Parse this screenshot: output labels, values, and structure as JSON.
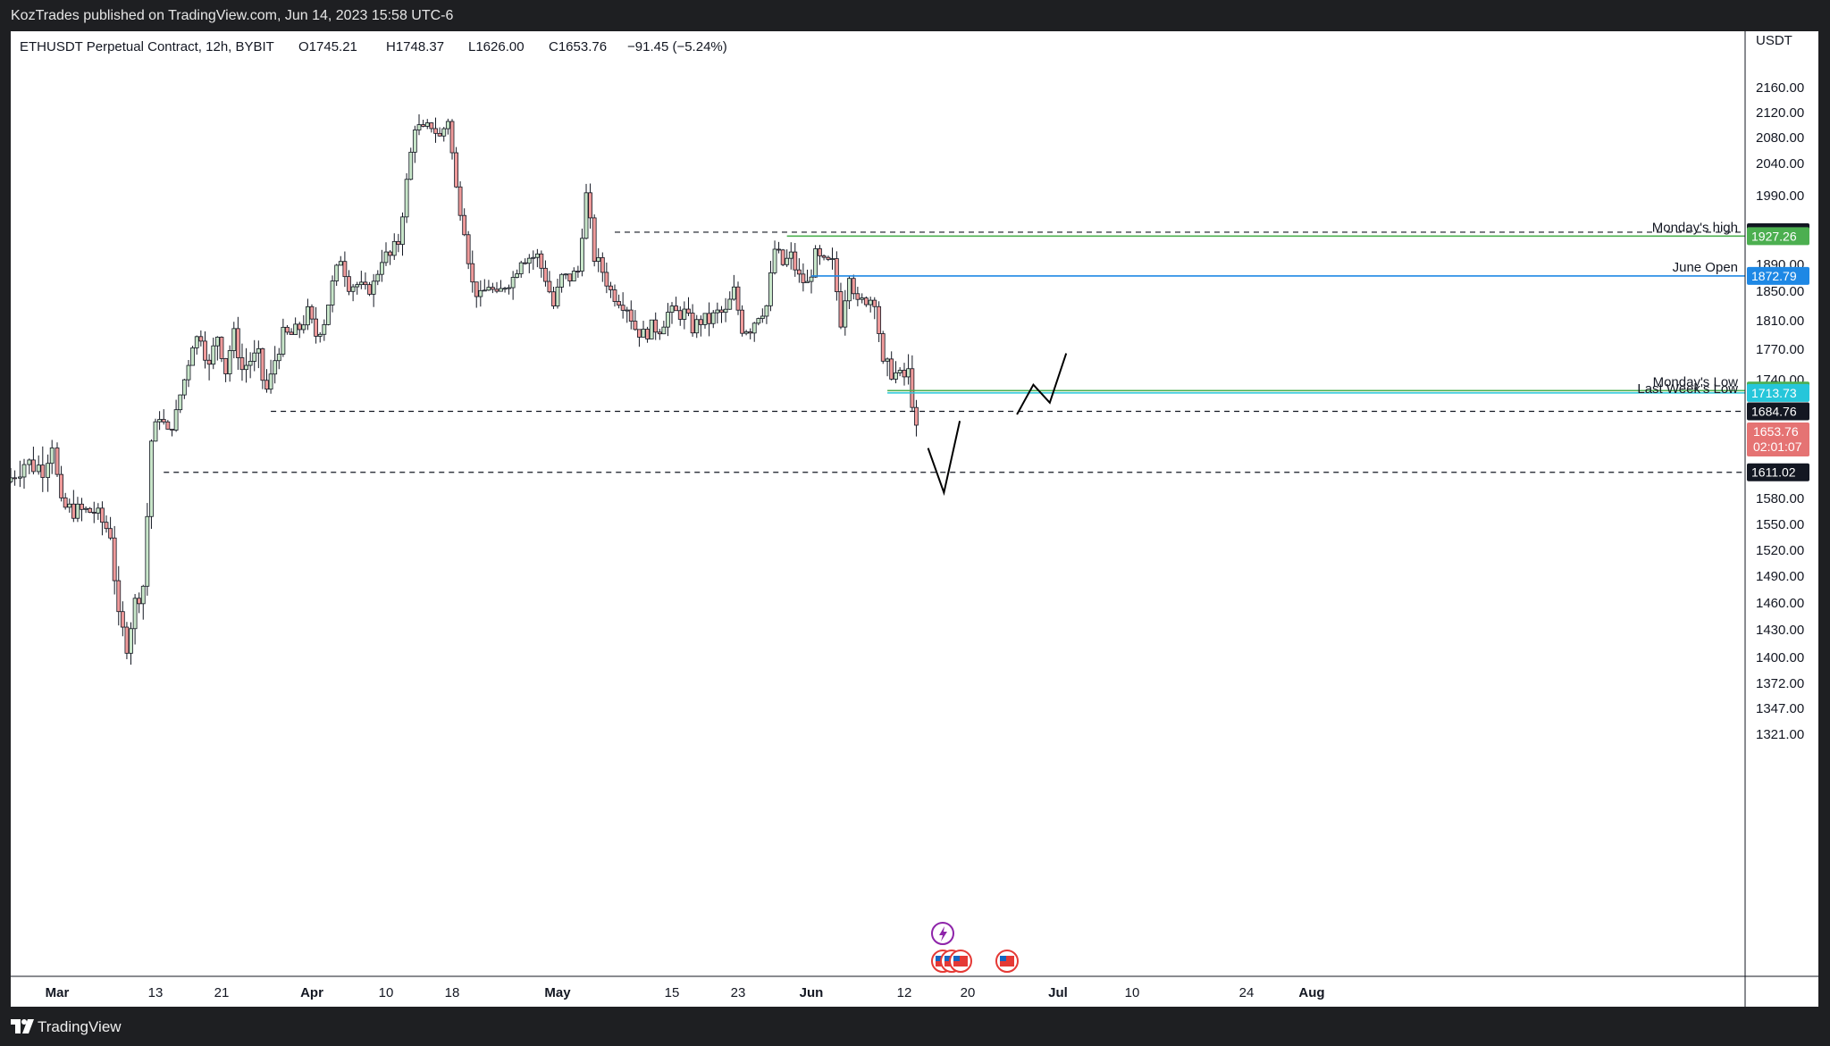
{
  "header": {
    "published": "KozTrades published on TradingView.com, Jun 14, 2023 15:58 UTC-6"
  },
  "footer": {
    "brand": "TradingView",
    "logo_icon": "tradingview-logo-icon"
  },
  "colors": {
    "up": "#26a69a",
    "up_body": "#c8e6c9",
    "down": "#ef5350",
    "down_body": "#ef9a9a",
    "wick": "#131722",
    "green_level": "#4caf50",
    "blue_level": "#1e88e5",
    "cyan_level": "#26c6da",
    "current_price": "#e57373"
  },
  "chart_data": {
    "type": "candlestick",
    "symbol_legend": "ETHUSDT Perpetual Contract, 12h, BYBIT",
    "ohlc": {
      "open": "O1745.21",
      "high": "H1748.37",
      "low": "L1626.00",
      "close": "C1653.76",
      "change": "−91.45 (−5.24%)"
    },
    "currency_label": "USDT",
    "y_ticks": [
      "2160.00",
      "2120.00",
      "2080.00",
      "2040.00",
      "1990.00",
      "1930.00",
      "1890.00",
      "1850.00",
      "1810.00",
      "1770.00",
      "1740.00",
      "1710.00",
      "1680.00",
      "1640.00",
      "1610.00",
      "1580.00",
      "1550.00",
      "1520.00",
      "1490.00",
      "1460.00",
      "1430.00",
      "1400.00",
      "1372.00",
      "1347.00",
      "1321.00"
    ],
    "y_tick_values": [
      2160,
      2120,
      2080,
      2040,
      1990,
      1930,
      1890,
      1850,
      1810,
      1770,
      1740,
      1710,
      1680,
      1640,
      1610,
      1580,
      1550,
      1520,
      1490,
      1460,
      1430,
      1400,
      1372,
      1347,
      1321
    ],
    "x_ticks": [
      {
        "label": "Mar",
        "date": "2023-03-01",
        "bold": true
      },
      {
        "label": "13",
        "date": "2023-03-13",
        "bold": false
      },
      {
        "label": "21",
        "date": "2023-03-21",
        "bold": false
      },
      {
        "label": "Apr",
        "date": "2023-04-01",
        "bold": true
      },
      {
        "label": "10",
        "date": "2023-04-10",
        "bold": false
      },
      {
        "label": "18",
        "date": "2023-04-18",
        "bold": false
      },
      {
        "label": "May",
        "date": "2023-05-01",
        "bold": true
      },
      {
        "label": "15",
        "date": "2023-05-15",
        "bold": false
      },
      {
        "label": "23",
        "date": "2023-05-23",
        "bold": false
      },
      {
        "label": "Jun",
        "date": "2023-06-01",
        "bold": true
      },
      {
        "label": "12",
        "date": "2023-06-12",
        "bold": false
      },
      {
        "label": "20",
        "date": "2023-06-20",
        "bold": false
      },
      {
        "label": "Jul",
        "date": "2023-07-01",
        "bold": true
      },
      {
        "label": "10",
        "date": "2023-07-10",
        "bold": false
      },
      {
        "label": "24",
        "date": "2023-07-24",
        "bold": false
      },
      {
        "label": "Aug",
        "date": "2023-08-01",
        "bold": true
      }
    ],
    "close_path": [
      [
        "2023-02-24",
        1600
      ],
      [
        "2023-02-26",
        1620
      ],
      [
        "2023-02-28",
        1615
      ],
      [
        "2023-03-01",
        1640
      ],
      [
        "2023-03-02",
        1570
      ],
      [
        "2023-03-04",
        1565
      ],
      [
        "2023-03-06",
        1565
      ],
      [
        "2023-03-08",
        1540
      ],
      [
        "2023-03-09",
        1440
      ],
      [
        "2023-03-10",
        1415
      ],
      [
        "2023-03-11",
        1460
      ],
      [
        "2023-03-12",
        1480
      ],
      [
        "2023-03-13",
        1640
      ],
      [
        "2023-03-14",
        1680
      ],
      [
        "2023-03-15",
        1650
      ],
      [
        "2023-03-16",
        1680
      ],
      [
        "2023-03-17",
        1740
      ],
      [
        "2023-03-18",
        1780
      ],
      [
        "2023-03-19",
        1790
      ],
      [
        "2023-03-20",
        1750
      ],
      [
        "2023-03-21",
        1790
      ],
      [
        "2023-03-22",
        1750
      ],
      [
        "2023-03-23",
        1790
      ],
      [
        "2023-03-24",
        1750
      ],
      [
        "2023-03-25",
        1760
      ],
      [
        "2023-03-26",
        1760
      ],
      [
        "2023-03-27",
        1720
      ],
      [
        "2023-03-28",
        1760
      ],
      [
        "2023-03-29",
        1790
      ],
      [
        "2023-03-30",
        1790
      ],
      [
        "2023-03-31",
        1800
      ],
      [
        "2023-04-01",
        1820
      ],
      [
        "2023-04-02",
        1790
      ],
      [
        "2023-04-03",
        1810
      ],
      [
        "2023-04-04",
        1860
      ],
      [
        "2023-04-05",
        1900
      ],
      [
        "2023-04-06",
        1860
      ],
      [
        "2023-04-07",
        1860
      ],
      [
        "2023-04-08",
        1850
      ],
      [
        "2023-04-09",
        1860
      ],
      [
        "2023-04-10",
        1900
      ],
      [
        "2023-04-11",
        1900
      ],
      [
        "2023-04-12",
        1920
      ],
      [
        "2023-04-13",
        2010
      ],
      [
        "2023-04-14",
        2100
      ],
      [
        "2023-04-15",
        2090
      ],
      [
        "2023-04-16",
        2100
      ],
      [
        "2023-04-17",
        2080
      ],
      [
        "2023-04-18",
        2110
      ],
      [
        "2023-04-19",
        2000
      ],
      [
        "2023-04-20",
        1940
      ],
      [
        "2023-04-21",
        1860
      ],
      [
        "2023-04-22",
        1840
      ],
      [
        "2023-04-23",
        1860
      ],
      [
        "2023-04-24",
        1840
      ],
      [
        "2023-04-25",
        1860
      ],
      [
        "2023-04-26",
        1870
      ],
      [
        "2023-04-27",
        1900
      ],
      [
        "2023-04-28",
        1900
      ],
      [
        "2023-04-29",
        1900
      ],
      [
        "2023-04-30",
        1870
      ],
      [
        "2023-05-01",
        1830
      ],
      [
        "2023-05-02",
        1870
      ],
      [
        "2023-05-03",
        1870
      ],
      [
        "2023-05-04",
        1880
      ],
      [
        "2023-05-05",
        1990
      ],
      [
        "2023-05-06",
        1900
      ],
      [
        "2023-05-07",
        1880
      ],
      [
        "2023-05-08",
        1850
      ],
      [
        "2023-05-09",
        1840
      ],
      [
        "2023-05-10",
        1830
      ],
      [
        "2023-05-11",
        1800
      ],
      [
        "2023-05-12",
        1790
      ],
      [
        "2023-05-13",
        1800
      ],
      [
        "2023-05-14",
        1800
      ],
      [
        "2023-05-15",
        1820
      ],
      [
        "2023-05-16",
        1820
      ],
      [
        "2023-05-17",
        1820
      ],
      [
        "2023-05-18",
        1800
      ],
      [
        "2023-05-19",
        1810
      ],
      [
        "2023-05-20",
        1810
      ],
      [
        "2023-05-21",
        1820
      ],
      [
        "2023-05-22",
        1820
      ],
      [
        "2023-05-23",
        1850
      ],
      [
        "2023-05-24",
        1800
      ],
      [
        "2023-05-25",
        1800
      ],
      [
        "2023-05-26",
        1820
      ],
      [
        "2023-05-27",
        1830
      ],
      [
        "2023-05-28",
        1910
      ],
      [
        "2023-05-29",
        1890
      ],
      [
        "2023-05-30",
        1900
      ],
      [
        "2023-05-31",
        1870
      ],
      [
        "2023-06-01",
        1860
      ],
      [
        "2023-06-02",
        1900
      ],
      [
        "2023-06-03",
        1890
      ],
      [
        "2023-06-04",
        1890
      ],
      [
        "2023-06-05",
        1810
      ],
      [
        "2023-06-06",
        1880
      ],
      [
        "2023-06-07",
        1830
      ],
      [
        "2023-06-08",
        1840
      ],
      [
        "2023-06-09",
        1840
      ],
      [
        "2023-06-10",
        1750
      ],
      [
        "2023-06-11",
        1750
      ],
      [
        "2023-06-12",
        1740
      ],
      [
        "2023-06-13",
        1745
      ],
      [
        "2023-06-14",
        1654
      ]
    ],
    "levels": [
      {
        "label": "",
        "price": 1932.87,
        "badge": "1932.87",
        "style": "dashed",
        "color": "#131722",
        "from": "2023-05-08"
      },
      {
        "label": "Monday's high",
        "price": 1927.26,
        "badge": "1927.26",
        "style": "solid",
        "color": "#4caf50",
        "from": "2023-05-29"
      },
      {
        "label": "June Open",
        "price": 1872.79,
        "badge": "1872.79",
        "style": "solid",
        "color": "#1e88e5",
        "from": "2023-06-01"
      },
      {
        "label": "Monday's Low",
        "price": 1718.3,
        "badge": "1718.30",
        "style": "solid",
        "color": "#4caf50",
        "from": "2023-06-10"
      },
      {
        "label": "Last Week's Low",
        "price": 1713.73,
        "badge": "1713.73",
        "style": "solid",
        "color": "#26c6da",
        "from": "2023-06-10"
      },
      {
        "label": "",
        "price": 1684.76,
        "badge": "1684.76",
        "style": "dashed",
        "color": "#131722",
        "from": "2023-03-27"
      },
      {
        "label": "",
        "price": 1611.02,
        "badge": "1611.02",
        "style": "dashed",
        "color": "#131722",
        "from": "2023-03-14"
      }
    ],
    "current_price": {
      "price": 1653.76,
      "badge": "1653.76",
      "countdown": "02:01:07"
    },
    "projection_lines": [
      [
        [
          "2023-06-15",
          1633
        ],
        [
          "2023-06-17",
          1587
        ],
        [
          "2023-06-19",
          1670
        ]
      ],
      [
        [
          "2023-06-26",
          1680
        ],
        [
          "2023-06-28",
          1730
        ],
        [
          "2023-06-30",
          1698
        ],
        [
          "2023-07-02",
          1766
        ]
      ]
    ],
    "event_icons": {
      "lightning": "lightning-event-icon",
      "flag": "us-flag-event-icon"
    }
  }
}
